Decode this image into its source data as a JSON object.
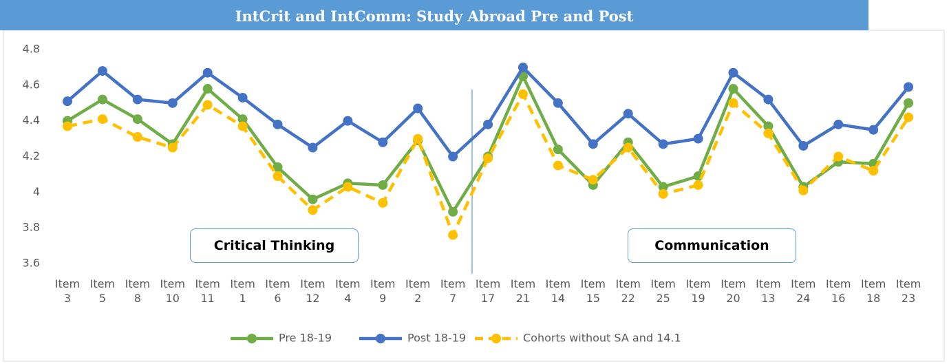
{
  "chart_data": {
    "type": "line",
    "title": "IntCrit and IntComm: Study Abroad Pre and Post",
    "categories": [
      "Item 3",
      "Item 5",
      "Item 8",
      "Item 10",
      "Item 11",
      "Item 1",
      "Item 6",
      "Item 12",
      "Item 4",
      "Item 9",
      "Item 2",
      "Item 7",
      "Item 17",
      "Item 21",
      "Item 14",
      "Item 15",
      "Item 22",
      "Item 25",
      "Item 19",
      "Item 20",
      "Item 13",
      "Item 24",
      "Item 16",
      "Item 18",
      "Item 23"
    ],
    "series": [
      {
        "name": "Pre 18-19",
        "color": "#70ad47",
        "dashed": false,
        "values": [
          4.4,
          4.52,
          4.41,
          4.27,
          4.58,
          4.41,
          4.14,
          3.96,
          4.05,
          4.04,
          4.29,
          3.89,
          4.2,
          4.65,
          4.24,
          4.04,
          4.28,
          4.03,
          4.09,
          4.58,
          4.37,
          4.03,
          4.17,
          4.16,
          4.5
        ]
      },
      {
        "name": "Post 18-19",
        "color": "#4472c4",
        "dashed": false,
        "values": [
          4.51,
          4.68,
          4.52,
          4.5,
          4.67,
          4.53,
          4.38,
          4.25,
          4.4,
          4.28,
          4.47,
          4.2,
          4.38,
          4.7,
          4.5,
          4.27,
          4.44,
          4.27,
          4.3,
          4.67,
          4.52,
          4.26,
          4.38,
          4.35,
          4.59
        ]
      },
      {
        "name": "Cohorts without SA and 14.1",
        "color": "#ffc000",
        "dashed": true,
        "values": [
          4.37,
          4.41,
          4.31,
          4.25,
          4.49,
          4.37,
          4.09,
          3.9,
          4.03,
          3.94,
          4.3,
          3.76,
          4.19,
          4.55,
          4.15,
          4.07,
          4.25,
          3.99,
          4.04,
          4.5,
          4.33,
          4.01,
          4.2,
          4.12,
          4.42
        ]
      }
    ],
    "annotations": [
      "Critical Thinking",
      "Communication"
    ],
    "ylim": [
      3.6,
      4.8
    ],
    "yticks": [
      3.6,
      3.8,
      4,
      4.2,
      4.4,
      4.6,
      4.8
    ],
    "grid": false
  }
}
